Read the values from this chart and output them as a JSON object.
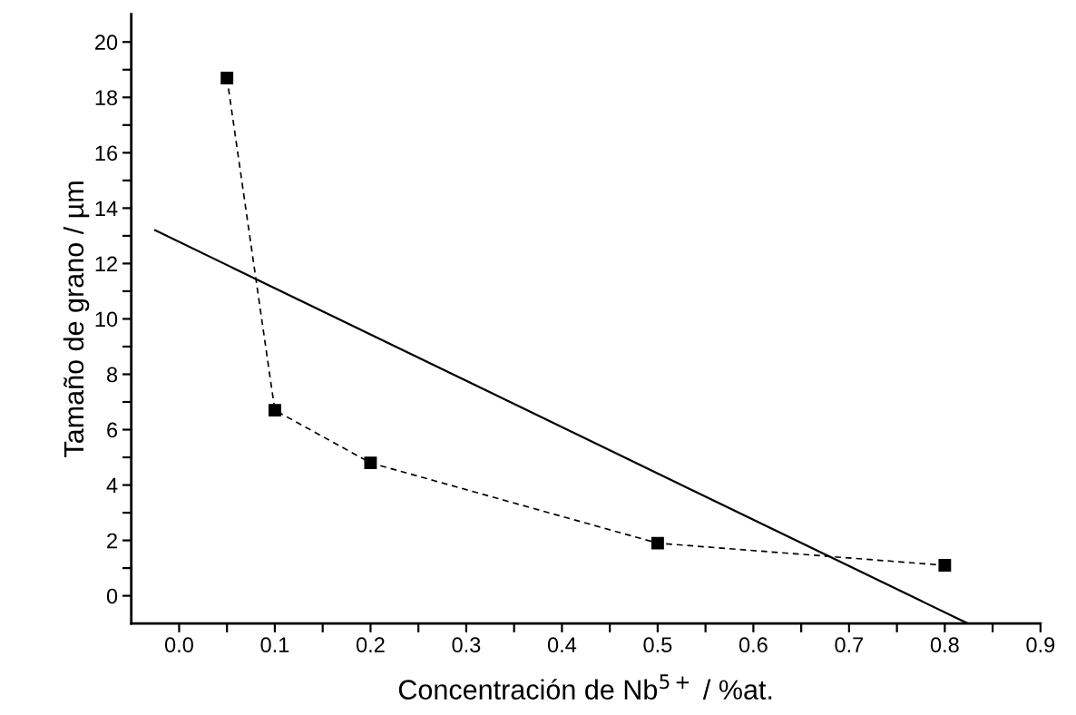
{
  "chart_data": {
    "type": "line",
    "xlabel": "Concentración de Nb$^{5+}$ / %at.",
    "ylabel": "Tamaño de grano / µm",
    "series": [
      {
        "color": "#000000",
        "marker": "square",
        "line_style": "dashed",
        "x": [
          0.05,
          0.1,
          0.2,
          0.5,
          0.8
        ],
        "values": [
          18.7,
          6.7,
          4.8,
          1.9,
          1.1
        ]
      },
      {
        "color": "#000000",
        "marker": "none",
        "line_style": "solid",
        "x": [
          -0.025,
          0.824
        ],
        "values": [
          13.2,
          -1.0
        ]
      }
    ],
    "xlim": [
      -0.05,
      0.9
    ],
    "ylim": [
      -1,
      21
    ],
    "xticks": [
      {
        "value": 0,
        "label": "0.0"
      },
      {
        "value": 0.05,
        "label": null
      },
      {
        "value": 0.1,
        "label": "0.1"
      },
      {
        "value": 0.15,
        "label": null
      },
      {
        "value": 0.2,
        "label": "0.2"
      },
      {
        "value": 0.25,
        "label": null
      },
      {
        "value": 0.3,
        "label": "0.3"
      },
      {
        "value": 0.35,
        "label": null
      },
      {
        "value": 0.4,
        "label": "0.4"
      },
      {
        "value": 0.45,
        "label": null
      },
      {
        "value": 0.5,
        "label": "0.5"
      },
      {
        "value": 0.55,
        "label": null
      },
      {
        "value": 0.6,
        "label": "0.6"
      },
      {
        "value": 0.65,
        "label": null
      },
      {
        "value": 0.7,
        "label": "0.7"
      },
      {
        "value": 0.75,
        "label": null
      },
      {
        "value": 0.8,
        "label": "0.8"
      },
      {
        "value": 0.85,
        "label": null
      },
      {
        "value": 0.9,
        "label": "0.9"
      }
    ],
    "yticks": [
      0,
      {
        "value": 1,
        "label": null
      },
      2,
      {
        "value": 3,
        "label": null
      },
      4,
      {
        "value": 5,
        "label": null
      },
      6,
      {
        "value": 7,
        "label": null
      },
      8,
      {
        "value": 9,
        "label": null
      },
      10,
      {
        "value": 11,
        "label": null
      },
      12,
      {
        "value": 13,
        "label": null
      },
      14,
      {
        "value": 15,
        "label": null
      },
      16,
      {
        "value": 17,
        "label": null
      },
      18,
      {
        "value": 19,
        "label": null
      },
      20
    ],
    "grid": false,
    "legend": false
  }
}
